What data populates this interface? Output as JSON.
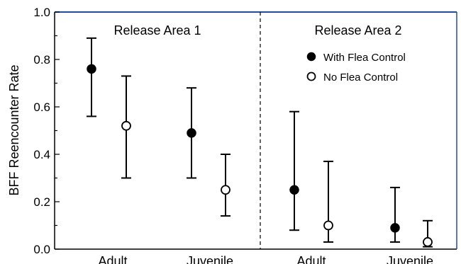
{
  "chart_data": {
    "type": "scatter",
    "ylabel": "BFF Reencounter Rate",
    "ylim": [
      0.0,
      1.0
    ],
    "y_ticks": [
      "0.0",
      "0.2",
      "0.4",
      "0.6",
      "0.8",
      "1.0"
    ],
    "panels": [
      "Release Area 1",
      "Release Area 2"
    ],
    "categories": [
      "Adult",
      "Juvenile",
      "Adult",
      "Juvenile"
    ],
    "legend": {
      "position": "top-right",
      "entries": [
        "With Flea Control",
        "No Flea Control"
      ]
    },
    "series": [
      {
        "name": "With Flea Control",
        "marker": "filled-circle",
        "points": [
          {
            "panel": "Release Area 1",
            "category": "Adult",
            "y": 0.76,
            "lower": 0.56,
            "upper": 0.89
          },
          {
            "panel": "Release Area 1",
            "category": "Juvenile",
            "y": 0.49,
            "lower": 0.3,
            "upper": 0.68
          },
          {
            "panel": "Release Area 2",
            "category": "Adult",
            "y": 0.25,
            "lower": 0.08,
            "upper": 0.58
          },
          {
            "panel": "Release Area 2",
            "category": "Juvenile",
            "y": 0.09,
            "lower": 0.03,
            "upper": 0.26
          }
        ]
      },
      {
        "name": "No Flea Control",
        "marker": "open-circle",
        "points": [
          {
            "panel": "Release Area 1",
            "category": "Adult",
            "y": 0.52,
            "lower": 0.3,
            "upper": 0.73
          },
          {
            "panel": "Release Area 1",
            "category": "Juvenile",
            "y": 0.25,
            "lower": 0.14,
            "upper": 0.4
          },
          {
            "panel": "Release Area 2",
            "category": "Adult",
            "y": 0.1,
            "lower": 0.03,
            "upper": 0.37
          },
          {
            "panel": "Release Area 2",
            "category": "Juvenile",
            "y": 0.03,
            "lower": 0.01,
            "upper": 0.12
          }
        ]
      }
    ],
    "grid": false,
    "frame_color": "#1f4e9c"
  }
}
